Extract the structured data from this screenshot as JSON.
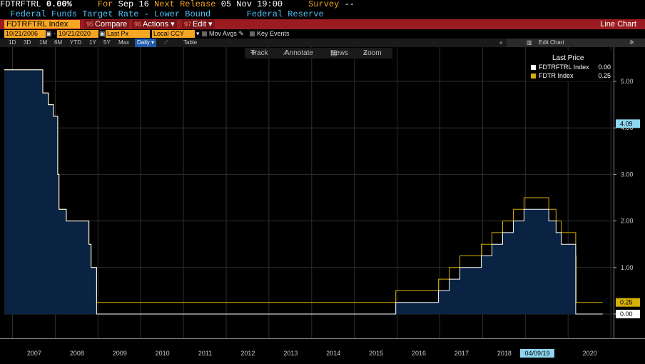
{
  "header": {
    "ticker": "FDTRFTRL",
    "last_value": "0.00%",
    "for_label": "For",
    "for_date": "Sep 16",
    "next_release_label": "Next Release",
    "next_release_date": "05 Nov 19:00",
    "survey_label": "Survey",
    "survey_value": "--",
    "description": "Federal Funds Target Rate - Lower Bound",
    "source": "Federal Reserve"
  },
  "redbar": {
    "security": "FDTRFTRL Index",
    "compare": {
      "num": "95",
      "label": "Compare"
    },
    "actions": {
      "num": "96",
      "label": "Actions ▾"
    },
    "edit": {
      "num": "97",
      "label": "Edit ▾"
    },
    "chart_type": "Line Chart"
  },
  "controls": {
    "start_date": "10/21/2006",
    "end_date": "10/21/2020",
    "price_field": "Last Px",
    "currency": "Local CCY",
    "mov_avgs": "Mov Avgs",
    "key_events": "Key Events"
  },
  "ranges": [
    "1D",
    "3D",
    "1M",
    "6M",
    "YTD",
    "1Y",
    "5Y",
    "Max"
  ],
  "frequency": "Daily ▾",
  "table_label": "Table",
  "edit_chart_label": "Edit Chart",
  "tools": {
    "track": "Track",
    "annotate": "Annotate",
    "news": "News",
    "zoom": "Zoom"
  },
  "legend": {
    "title": "Last Price",
    "items": [
      {
        "name": "FDTRFTRL Index",
        "value": "0.00",
        "color": "#ffffff"
      },
      {
        "name": "FDTR Index",
        "value": "0.25",
        "color": "#d4b106"
      }
    ]
  },
  "chart_data": {
    "type": "line",
    "xlabels": [
      "2007",
      "2008",
      "2009",
      "2010",
      "2011",
      "2012",
      "2013",
      "2014",
      "2015",
      "2016",
      "2017",
      "2018",
      "2019",
      "2020"
    ],
    "yticks": [
      "0.00",
      "1.00",
      "2.00",
      "3.00",
      "4.00",
      "5.00"
    ],
    "ylim": [
      0,
      5.5
    ],
    "tags": {
      "fdtr_last": "0.25",
      "lower_last": "0.00",
      "marker": "4.09",
      "date_marker": "04/09/19"
    },
    "series": [
      {
        "name": "FDTRFTRL Index",
        "color": "#ffffff",
        "fill": "#0a2342",
        "points": [
          [
            2006.8,
            5.25
          ],
          [
            2007.7,
            5.25
          ],
          [
            2007.7,
            4.75
          ],
          [
            2007.83,
            4.75
          ],
          [
            2007.83,
            4.5
          ],
          [
            2007.95,
            4.5
          ],
          [
            2007.95,
            4.25
          ],
          [
            2008.05,
            4.25
          ],
          [
            2008.05,
            3.0
          ],
          [
            2008.08,
            3.0
          ],
          [
            2008.08,
            2.25
          ],
          [
            2008.25,
            2.25
          ],
          [
            2008.25,
            2.0
          ],
          [
            2008.78,
            2.0
          ],
          [
            2008.78,
            1.5
          ],
          [
            2008.83,
            1.5
          ],
          [
            2008.83,
            1.0
          ],
          [
            2008.96,
            1.0
          ],
          [
            2008.96,
            0.0
          ],
          [
            2015.96,
            0.0
          ],
          [
            2015.96,
            0.25
          ],
          [
            2016.96,
            0.25
          ],
          [
            2016.96,
            0.5
          ],
          [
            2017.21,
            0.5
          ],
          [
            2017.21,
            0.75
          ],
          [
            2017.46,
            0.75
          ],
          [
            2017.46,
            1.0
          ],
          [
            2017.96,
            1.0
          ],
          [
            2017.96,
            1.25
          ],
          [
            2018.21,
            1.25
          ],
          [
            2018.21,
            1.5
          ],
          [
            2018.46,
            1.5
          ],
          [
            2018.46,
            1.75
          ],
          [
            2018.71,
            1.75
          ],
          [
            2018.71,
            2.0
          ],
          [
            2018.96,
            2.0
          ],
          [
            2018.96,
            2.25
          ],
          [
            2019.54,
            2.25
          ],
          [
            2019.54,
            2.0
          ],
          [
            2019.71,
            2.0
          ],
          [
            2019.71,
            1.75
          ],
          [
            2019.83,
            1.75
          ],
          [
            2019.83,
            1.5
          ],
          [
            2020.17,
            1.5
          ],
          [
            2020.17,
            0.0
          ],
          [
            2020.8,
            0.0
          ]
        ]
      },
      {
        "name": "FDTR Index",
        "color": "#d4b106",
        "points": [
          [
            2006.8,
            5.25
          ],
          [
            2007.7,
            5.25
          ],
          [
            2007.7,
            4.75
          ],
          [
            2007.83,
            4.75
          ],
          [
            2007.83,
            4.5
          ],
          [
            2007.95,
            4.5
          ],
          [
            2007.95,
            4.25
          ],
          [
            2008.05,
            4.25
          ],
          [
            2008.05,
            3.0
          ],
          [
            2008.08,
            3.0
          ],
          [
            2008.08,
            2.25
          ],
          [
            2008.25,
            2.25
          ],
          [
            2008.25,
            2.0
          ],
          [
            2008.78,
            2.0
          ],
          [
            2008.78,
            1.5
          ],
          [
            2008.83,
            1.5
          ],
          [
            2008.83,
            1.0
          ],
          [
            2008.96,
            1.0
          ],
          [
            2008.96,
            0.25
          ],
          [
            2015.96,
            0.25
          ],
          [
            2015.96,
            0.5
          ],
          [
            2016.96,
            0.5
          ],
          [
            2016.96,
            0.75
          ],
          [
            2017.21,
            0.75
          ],
          [
            2017.21,
            1.0
          ],
          [
            2017.46,
            1.0
          ],
          [
            2017.46,
            1.25
          ],
          [
            2017.96,
            1.25
          ],
          [
            2017.96,
            1.5
          ],
          [
            2018.21,
            1.5
          ],
          [
            2018.21,
            1.75
          ],
          [
            2018.46,
            1.75
          ],
          [
            2018.46,
            2.0
          ],
          [
            2018.71,
            2.0
          ],
          [
            2018.71,
            2.25
          ],
          [
            2018.96,
            2.25
          ],
          [
            2018.96,
            2.5
          ],
          [
            2019.54,
            2.5
          ],
          [
            2019.54,
            2.25
          ],
          [
            2019.71,
            2.25
          ],
          [
            2019.71,
            2.0
          ],
          [
            2019.83,
            2.0
          ],
          [
            2019.83,
            1.75
          ],
          [
            2020.17,
            1.75
          ],
          [
            2020.17,
            1.25
          ],
          [
            2020.18,
            1.25
          ],
          [
            2020.18,
            0.25
          ],
          [
            2020.8,
            0.25
          ]
        ]
      }
    ]
  }
}
